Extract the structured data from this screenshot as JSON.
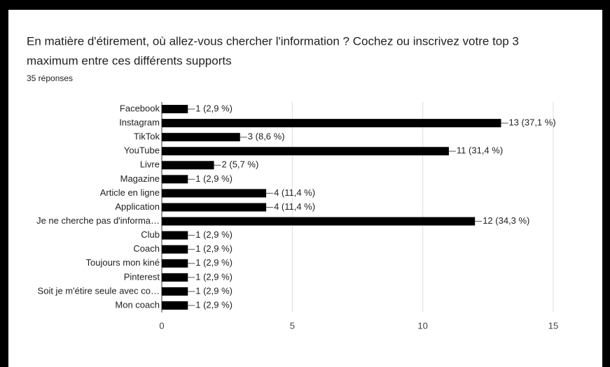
{
  "chart_data": {
    "type": "bar",
    "orientation": "horizontal",
    "title": "En matière d'étirement, où allez-vous chercher l'information ? Cochez ou inscrivez votre top 3",
    "title_line2": "maximum entre ces différents supports",
    "subtitle": "35 réponses",
    "categories": [
      "Facebook",
      "Instagram",
      "TikTok",
      "YouTube",
      "Livre",
      "Magazine",
      "Article en ligne",
      "Application",
      "Je ne cherche pas d'informa…",
      "Club",
      "Coach",
      "Toujours mon kiné",
      "Pinterest",
      "Soit je m'étire seule avec co…",
      "Mon coach"
    ],
    "values": [
      1,
      13,
      3,
      11,
      2,
      1,
      4,
      4,
      12,
      1,
      1,
      1,
      1,
      1,
      1
    ],
    "value_labels": [
      "1 (2,9 %)",
      "13 (37,1 %)",
      "3 (8,6 %)",
      "11 (31,4 %)",
      "2 (5,7 %)",
      "1 (2,9 %)",
      "4 (11,4 %)",
      "4 (11,4 %)",
      "12 (34,3 %)",
      "1 (2,9 %)",
      "1 (2,9 %)",
      "1 (2,9 %)",
      "1 (2,9 %)",
      "1 (2,9 %)",
      "1 (2,9 %)"
    ],
    "color": "#000000",
    "xlim": [
      0,
      15
    ],
    "xticks": [
      0,
      5,
      10,
      15
    ],
    "grid": true
  }
}
